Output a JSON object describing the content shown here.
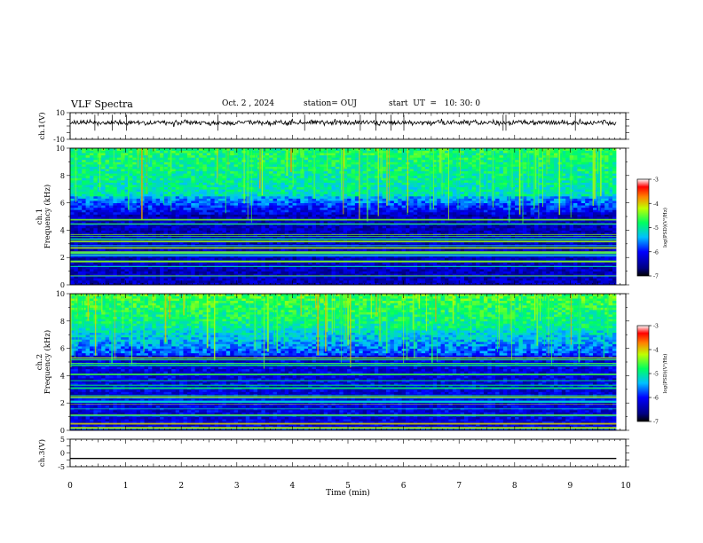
{
  "header": {
    "title": "VLF Spectra",
    "date": "Oct. 2 , 2024",
    "station": "station= OUJ",
    "start": "start  UT  =   10: 30: 0"
  },
  "chart_data": [
    {
      "type": "line",
      "title": "",
      "ylabel": "ch.1(V)",
      "ylim": [
        -10,
        10
      ],
      "yticks": [
        "10",
        "-10"
      ],
      "x": [
        0,
        9.83
      ],
      "series": [
        {
          "values": [
            2.5,
            2.5
          ]
        }
      ]
    },
    {
      "type": "heatmap",
      "ylabel_top": "ch.1",
      "ylabel": "Frequency (kHz)",
      "ylim": [
        0,
        10
      ],
      "yticks": [
        "0",
        "2",
        "4",
        "6",
        "8",
        "10"
      ],
      "xlim": [
        0,
        10
      ],
      "data_end_min": 9.83,
      "colorbar": {
        "label": "log(PSD)(V²/Hz)",
        "range": [
          -7,
          -3
        ],
        "ticks": [
          "-3",
          "-4",
          "-5",
          "-6",
          "-7"
        ]
      }
    },
    {
      "type": "heatmap",
      "ylabel_top": "ch.2",
      "ylabel": "Frequency (kHz)",
      "ylim": [
        0,
        10
      ],
      "yticks": [
        "0",
        "2",
        "4",
        "6",
        "8",
        "10"
      ],
      "xlim": [
        0,
        10
      ],
      "data_end_min": 9.83,
      "colorbar": {
        "label": "log(PSD)(V²/Hz)",
        "range": [
          -7,
          -3
        ],
        "ticks": [
          "-3",
          "-4",
          "-5",
          "-6",
          "-7"
        ]
      }
    },
    {
      "type": "line",
      "ylabel": "ch.3(V)",
      "ylim": [
        -5,
        5
      ],
      "yticks": [
        "5",
        "0",
        "-5"
      ],
      "x": [
        0,
        9.83
      ],
      "series": [
        {
          "values": [
            -2,
            -2
          ]
        }
      ]
    }
  ],
  "xaxis": {
    "label": "Time  (min)",
    "ticks": [
      "0",
      "1",
      "2",
      "3",
      "4",
      "5",
      "6",
      "7",
      "8",
      "9",
      "10"
    ],
    "xlim": [
      0,
      10
    ]
  }
}
